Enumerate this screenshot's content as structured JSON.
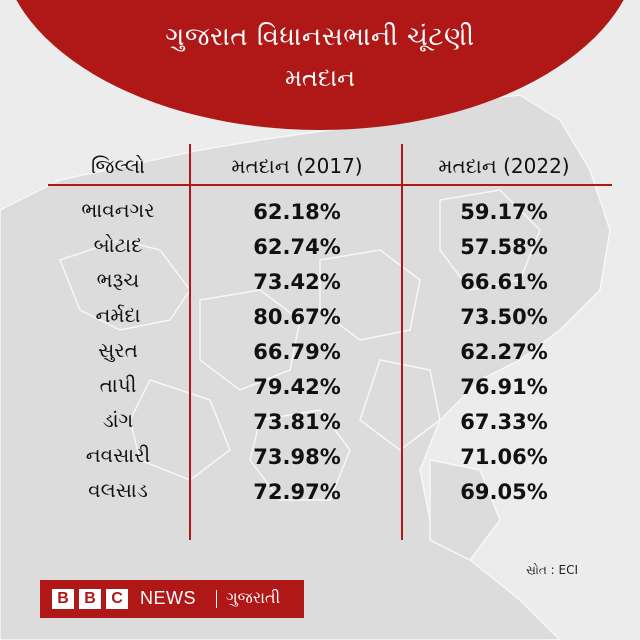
{
  "title": "ગુજરાત વિધાનસભાની ચૂંટણી",
  "subtitle": "મતદાન",
  "table": {
    "headers": [
      "જિલ્લો",
      "મતદાન (2017)",
      "મતદાન (2022)"
    ],
    "rows": [
      {
        "district": "ભાવનગર",
        "v2017": "62.18%",
        "v2022": "59.17%"
      },
      {
        "district": "બોટાદ",
        "v2017": "62.74%",
        "v2022": "57.58%"
      },
      {
        "district": "ભરૂચ",
        "v2017": "73.42%",
        "v2022": "66.61%"
      },
      {
        "district": "નર્મદા",
        "v2017": "80.67%",
        "v2022": "73.50%"
      },
      {
        "district": "સુરત",
        "v2017": "66.79%",
        "v2022": "62.27%"
      },
      {
        "district": "તાપી",
        "v2017": "79.42%",
        "v2022": "76.91%"
      },
      {
        "district": "ડાંગ",
        "v2017": "73.81%",
        "v2022": "67.33%"
      },
      {
        "district": "નવસારી",
        "v2017": "73.98%",
        "v2022": "71.06%"
      },
      {
        "district": "વલસાડ",
        "v2017": "72.97%",
        "v2022": "69.05%"
      }
    ]
  },
  "source": "સ્રોત : ECI",
  "logo": {
    "letters": [
      "B",
      "B",
      "C"
    ],
    "news": "NEWS",
    "language": "ગુજરાતી"
  },
  "colors": {
    "accent": "#b01818",
    "background": "#ececec",
    "text": "#111111"
  }
}
